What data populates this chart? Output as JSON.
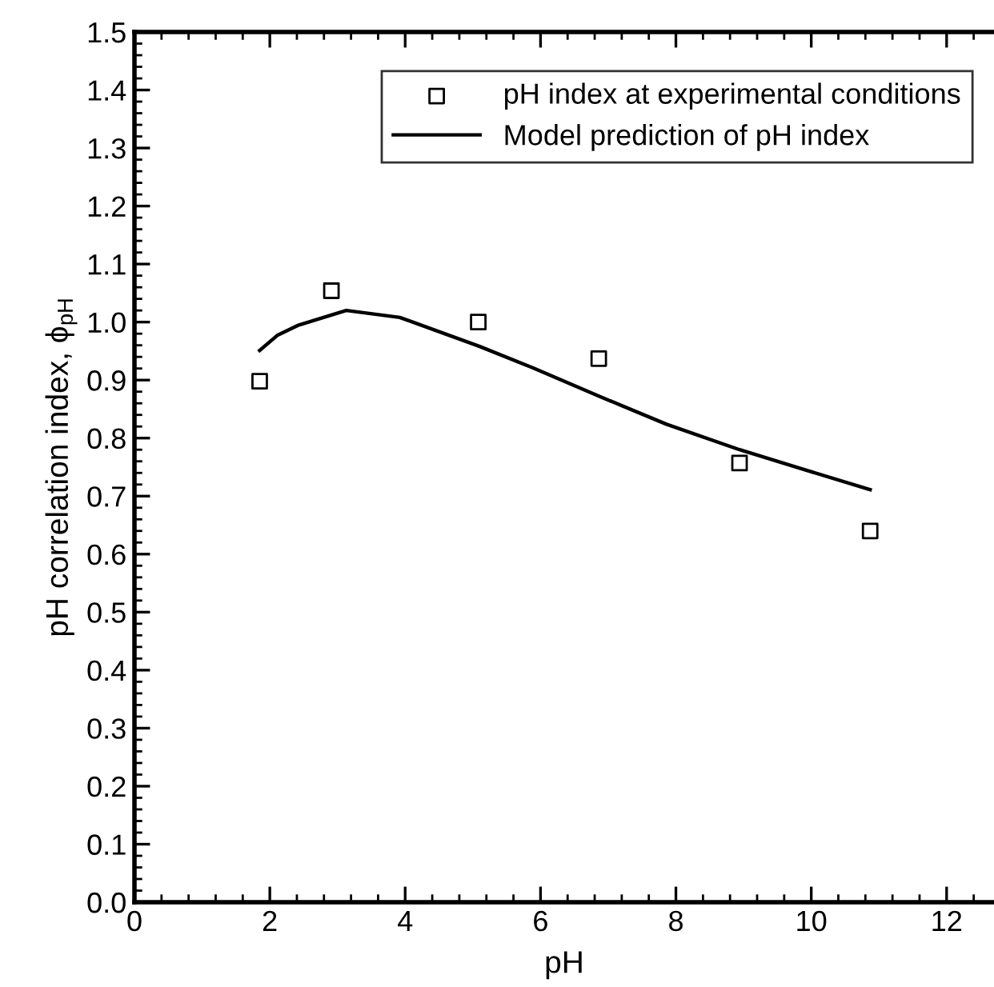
{
  "chart_data": {
    "type": "scatter",
    "xlabel": "pH",
    "ylabel": "pH correlation index, ϕ$_{pH}$",
    "xlim": [
      0,
      12.7
    ],
    "xticks": [
      0,
      2,
      4,
      6,
      8,
      10,
      12
    ],
    "ylim": [
      0,
      1.5
    ],
    "yticks": [
      {
        "value": 0,
        "label": "0.0"
      },
      0.1,
      0.2,
      0.3,
      0.4,
      0.5,
      0.6,
      0.7,
      0.8,
      0.9,
      {
        "value": 1,
        "label": "1.0"
      },
      1.1,
      1.2,
      1.3,
      1.4,
      1.5
    ],
    "grid": false,
    "legend": "top right",
    "series": [
      {
        "name": "pH index at experimental conditions",
        "marker": "square",
        "color": "#000000",
        "x": [
          1.85,
          2.91,
          5.08,
          6.86,
          8.94,
          10.87
        ],
        "values": [
          0.898,
          1.054,
          1.0,
          0.937,
          0.757,
          0.64
        ]
      },
      {
        "name": "Model prediction of pH index",
        "type": "line",
        "marker": "none",
        "line_style": "solid",
        "color": "#000000",
        "x": [
          1.85,
          2.11,
          2.43,
          3.13,
          3.92,
          5.1,
          5.89,
          6.91,
          7.86,
          8.94,
          9.83,
          10.87
        ],
        "values": [
          0.951,
          0.977,
          0.995,
          1.02,
          1.008,
          0.958,
          0.921,
          0.87,
          0.824,
          0.78,
          0.748,
          0.711
        ]
      }
    ]
  }
}
